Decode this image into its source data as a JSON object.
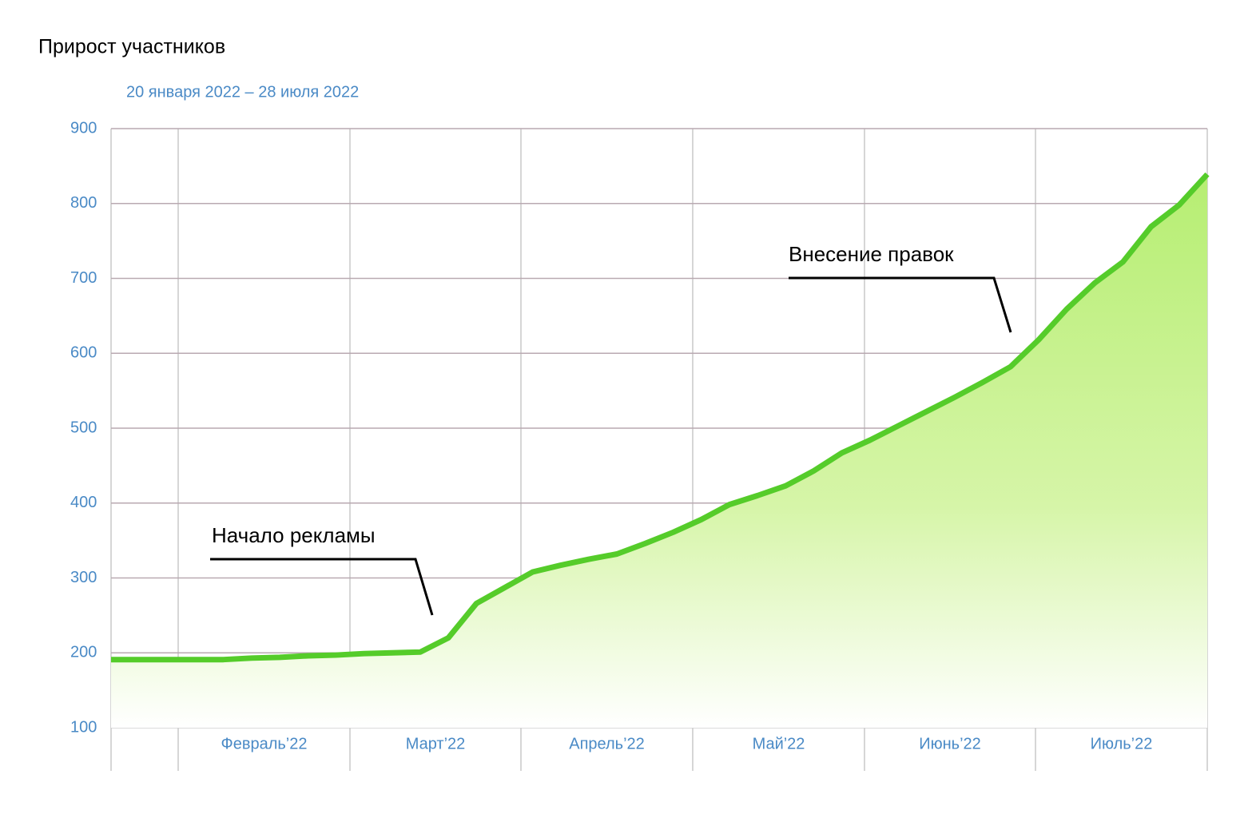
{
  "chart_data": {
    "type": "area",
    "title": "Прирост участников",
    "subtitle": "20 января 2022 – 28 июля 2022",
    "month_labels": [
      "Февраль’22",
      "Март’22",
      "Апрель’22",
      "Май’22",
      "Июнь’22",
      "Июль’22"
    ],
    "values": [
      191,
      191,
      191,
      191,
      191,
      193,
      194,
      196,
      197,
      199,
      200,
      201,
      220,
      266,
      287,
      308,
      317,
      325,
      332,
      346,
      361,
      378,
      398,
      410,
      423,
      443,
      467,
      484,
      503,
      522,
      541,
      561,
      582,
      618,
      659,
      694,
      722,
      769,
      798,
      839
    ],
    "color": "#55cc2a",
    "ylim": [
      100,
      900
    ],
    "yticks": [
      100,
      200,
      300,
      400,
      500,
      600,
      700,
      800,
      900
    ],
    "grid": true,
    "annotations": [
      "Начало рекламы",
      "Внесение правок"
    ]
  }
}
